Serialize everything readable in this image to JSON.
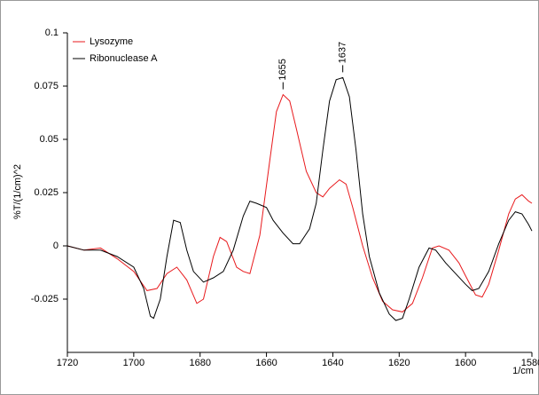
{
  "chart_data": {
    "type": "line",
    "xlabel": "1/cm",
    "ylabel": "%T/(1/cm)^2",
    "xlim": [
      1720,
      1580
    ],
    "ylim": [
      -0.05,
      0.1
    ],
    "xticks": [
      1720,
      1700,
      1680,
      1660,
      1640,
      1620,
      1600,
      1580
    ],
    "yticks": [
      0.1,
      0.075,
      0.05,
      0.025,
      0,
      -0.025
    ],
    "legend": "top-left",
    "series": [
      {
        "name": "Lysozyme",
        "color": "#e8191c",
        "x": [
          1720,
          1715,
          1710,
          1705,
          1700,
          1696,
          1693,
          1690,
          1687,
          1684,
          1681,
          1679,
          1676,
          1674,
          1672,
          1669,
          1667,
          1665,
          1662,
          1659,
          1657,
          1655,
          1653,
          1651,
          1648,
          1645,
          1643,
          1641,
          1638,
          1636,
          1634,
          1631,
          1628,
          1625,
          1622,
          1619,
          1616,
          1613,
          1610,
          1608,
          1605,
          1602,
          1600,
          1597,
          1595,
          1593,
          1590,
          1587,
          1585,
          1583,
          1581,
          1580
        ],
        "values": [
          0.0,
          -0.002,
          -0.001,
          -0.006,
          -0.012,
          -0.021,
          -0.02,
          -0.013,
          -0.01,
          -0.016,
          -0.027,
          -0.025,
          -0.005,
          0.004,
          0.002,
          -0.01,
          -0.012,
          -0.013,
          0.005,
          0.04,
          0.063,
          0.071,
          0.068,
          0.055,
          0.035,
          0.025,
          0.023,
          0.027,
          0.031,
          0.029,
          0.018,
          0.0,
          -0.015,
          -0.026,
          -0.03,
          -0.031,
          -0.027,
          -0.015,
          -0.001,
          0.0,
          -0.002,
          -0.008,
          -0.014,
          -0.023,
          -0.024,
          -0.018,
          -0.002,
          0.015,
          0.022,
          0.024,
          0.021,
          0.02
        ]
      },
      {
        "name": "Ribonuclease A",
        "color": "#000000",
        "x": [
          1720,
          1715,
          1710,
          1705,
          1700,
          1697,
          1695,
          1694,
          1692,
          1690,
          1688,
          1686,
          1684,
          1682,
          1679,
          1676,
          1673,
          1670,
          1667,
          1665,
          1663,
          1660,
          1658,
          1655,
          1652,
          1650,
          1647,
          1645,
          1643,
          1641,
          1639,
          1637,
          1635,
          1633,
          1631,
          1629,
          1626,
          1623,
          1621,
          1619,
          1617,
          1614,
          1611,
          1609,
          1606,
          1603,
          1600,
          1598,
          1596,
          1593,
          1590,
          1587,
          1585,
          1583,
          1581,
          1580
        ],
        "values": [
          0.0,
          -0.002,
          -0.002,
          -0.005,
          -0.01,
          -0.02,
          -0.033,
          -0.034,
          -0.025,
          -0.005,
          0.012,
          0.011,
          -0.002,
          -0.012,
          -0.017,
          -0.015,
          -0.012,
          -0.002,
          0.014,
          0.021,
          0.02,
          0.018,
          0.012,
          0.006,
          0.001,
          0.001,
          0.008,
          0.02,
          0.045,
          0.068,
          0.078,
          0.079,
          0.07,
          0.045,
          0.015,
          -0.005,
          -0.022,
          -0.032,
          -0.035,
          -0.034,
          -0.025,
          -0.01,
          -0.001,
          -0.002,
          -0.008,
          -0.013,
          -0.018,
          -0.021,
          -0.02,
          -0.012,
          0.001,
          0.012,
          0.016,
          0.015,
          0.01,
          0.007
        ]
      }
    ],
    "annotations": [
      {
        "text": "1655",
        "x": 1655
      },
      {
        "text": "1637",
        "x": 1637
      }
    ]
  }
}
